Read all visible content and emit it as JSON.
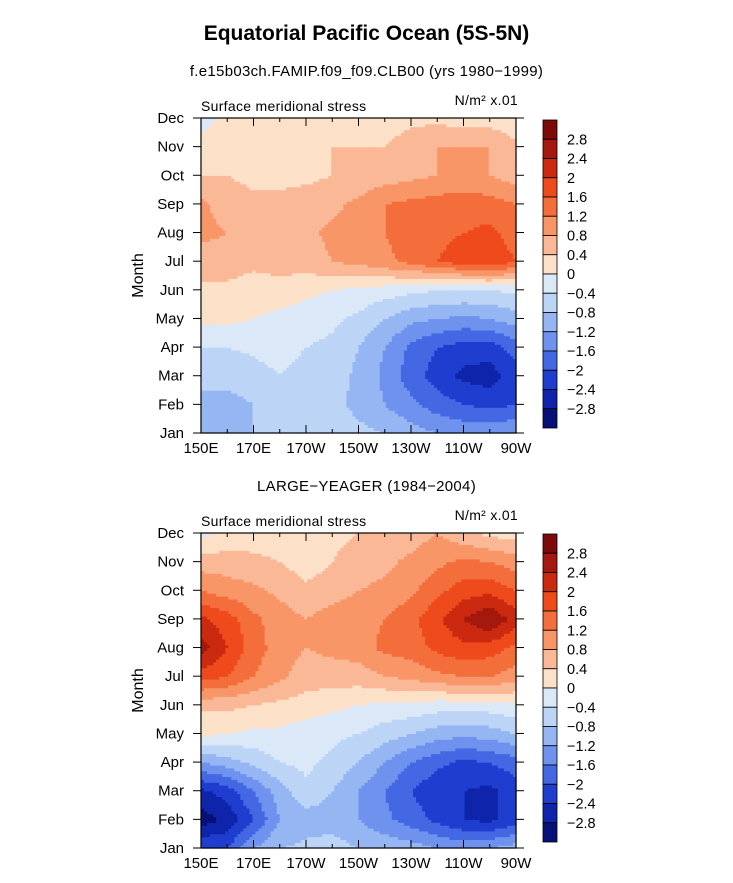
{
  "title": "Equatorial Pacific Ocean (5S-5N)",
  "subtitle": "f.e15b03ch.FAMIP.f09_f09.CLB00 (yrs 1980−1999)",
  "colorbar": {
    "labels": [
      "2.8",
      "2.4",
      "2",
      "1.6",
      "1.2",
      "0.8",
      "0.4",
      "0",
      "−0.4",
      "−0.8",
      "−1.2",
      "−1.6",
      "−2",
      "−2.4",
      "−2.8"
    ],
    "colors": [
      "#7d0a0a",
      "#a5180d",
      "#cc2a10",
      "#ee4a1c",
      "#f46e3c",
      "#f89668",
      "#fab896",
      "#fde0c8",
      "#dae8f8",
      "#bcd4f6",
      "#95b6f2",
      "#6e92ee",
      "#4468e4",
      "#1f3ed0",
      "#0e24aa",
      "#061078"
    ]
  },
  "chart_data": [
    {
      "type": "heatmap",
      "panel_title": "",
      "left_label": "Surface meridional stress",
      "units_label": "N/m² x.01",
      "ylabel": "Month",
      "xlabel": "",
      "x_ticks": [
        "150E",
        "170E",
        "170W",
        "150W",
        "130W",
        "110W",
        "90W"
      ],
      "y_ticks": [
        "Jan",
        "Feb",
        "Mar",
        "Apr",
        "May",
        "Jun",
        "Jul",
        "Aug",
        "Sep",
        "Oct",
        "Nov",
        "Dec"
      ],
      "x": [
        150,
        160,
        170,
        180,
        190,
        200,
        210,
        220,
        230,
        240,
        250,
        260,
        270
      ],
      "months": [
        "Jan",
        "Feb",
        "Mar",
        "Apr",
        "May",
        "Jun",
        "Jul",
        "Aug",
        "Sep",
        "Oct",
        "Nov",
        "Dec"
      ],
      "values": [
        [
          -0.8,
          -0.9,
          -0.8,
          -0.6,
          -0.6,
          -0.6,
          -0.7,
          -0.8,
          -1.0,
          -1.2,
          -1.3,
          -1.3,
          -1.2
        ],
        [
          -1.0,
          -1.0,
          -0.8,
          -0.6,
          -0.6,
          -0.7,
          -0.9,
          -1.2,
          -1.5,
          -1.8,
          -2.0,
          -2.1,
          -2.0
        ],
        [
          -0.6,
          -0.6,
          -0.5,
          -0.4,
          -0.5,
          -0.6,
          -0.9,
          -1.3,
          -1.8,
          -2.2,
          -2.5,
          -2.6,
          -2.2
        ],
        [
          -0.4,
          -0.4,
          -0.35,
          -0.3,
          -0.4,
          -0.5,
          -0.8,
          -1.2,
          -1.7,
          -2.0,
          -2.2,
          -2.2,
          -1.8
        ],
        [
          0.1,
          0.1,
          0.0,
          -0.1,
          -0.2,
          -0.3,
          -0.5,
          -0.8,
          -1.1,
          -1.2,
          -1.3,
          -1.2,
          -1.0
        ],
        [
          0.3,
          0.3,
          0.2,
          0.2,
          0.1,
          0.0,
          -0.1,
          -0.2,
          -0.3,
          -0.4,
          -0.4,
          -0.4,
          -0.3
        ],
        [
          0.6,
          0.6,
          0.5,
          0.6,
          0.6,
          0.8,
          0.9,
          1.1,
          1.3,
          1.6,
          1.8,
          1.9,
          1.6
        ],
        [
          0.9,
          0.8,
          0.7,
          0.7,
          0.7,
          0.9,
          1.0,
          1.2,
          1.4,
          1.5,
          1.6,
          1.7,
          1.4
        ],
        [
          0.9,
          0.6,
          0.5,
          0.5,
          0.6,
          0.7,
          0.9,
          1.2,
          1.3,
          1.4,
          1.4,
          1.4,
          1.2
        ],
        [
          0.4,
          0.4,
          0.3,
          0.3,
          0.3,
          0.4,
          0.5,
          0.6,
          0.7,
          0.8,
          0.9,
          0.8,
          0.6
        ],
        [
          0.2,
          0.3,
          0.3,
          0.4,
          0.4,
          0.4,
          0.4,
          0.4,
          0.6,
          0.8,
          0.8,
          0.8,
          0.5
        ],
        [
          -0.2,
          0.1,
          0.2,
          0.3,
          0.2,
          0.2,
          0.2,
          0.2,
          0.3,
          0.3,
          0.2,
          0.2,
          0.1
        ]
      ]
    },
    {
      "type": "heatmap",
      "panel_title": "LARGE−YEAGER (1984−2004)",
      "left_label": "Surface meridional stress",
      "units_label": "N/m² x.01",
      "ylabel": "Month",
      "xlabel": "",
      "x_ticks": [
        "150E",
        "170E",
        "170W",
        "150W",
        "130W",
        "110W",
        "90W"
      ],
      "y_ticks": [
        "Jan",
        "Feb",
        "Mar",
        "Apr",
        "May",
        "Jun",
        "Jul",
        "Aug",
        "Sep",
        "Oct",
        "Nov",
        "Dec"
      ],
      "x": [
        150,
        160,
        170,
        180,
        190,
        200,
        210,
        220,
        230,
        240,
        250,
        260,
        270
      ],
      "months": [
        "Jan",
        "Feb",
        "Mar",
        "Apr",
        "May",
        "Jun",
        "Jul",
        "Aug",
        "Sep",
        "Oct",
        "Nov",
        "Dec"
      ],
      "values": [
        [
          -2.0,
          -2.0,
          -1.2,
          -0.8,
          -0.7,
          -0.6,
          -0.8,
          -0.9,
          -1.0,
          -1.2,
          -1.3,
          -1.2,
          -1.0
        ],
        [
          -3.0,
          -2.7,
          -2.0,
          -1.2,
          -1.0,
          -1.0,
          -1.2,
          -1.5,
          -1.8,
          -2.1,
          -2.4,
          -2.5,
          -2.2
        ],
        [
          -2.5,
          -2.2,
          -1.6,
          -1.0,
          -0.5,
          -0.8,
          -1.2,
          -1.6,
          -2.0,
          -2.3,
          -2.4,
          -2.5,
          -2.2
        ],
        [
          -1.2,
          -1.0,
          -0.7,
          -0.4,
          -0.3,
          -0.5,
          -0.8,
          -1.2,
          -1.6,
          -1.9,
          -2.1,
          -2.0,
          -1.8
        ],
        [
          0.1,
          0.0,
          -0.1,
          -0.1,
          -0.2,
          -0.3,
          -0.4,
          -0.6,
          -0.8,
          -1.0,
          -1.1,
          -1.0,
          -0.8
        ],
        [
          0.5,
          0.5,
          0.4,
          0.3,
          0.2,
          0.1,
          0.0,
          -0.1,
          -0.1,
          -0.2,
          -0.2,
          -0.2,
          -0.1
        ],
        [
          1.8,
          1.6,
          1.2,
          0.9,
          0.6,
          0.6,
          0.6,
          0.8,
          0.9,
          1.1,
          1.2,
          1.2,
          1.0
        ],
        [
          2.6,
          2.0,
          1.4,
          1.0,
          0.8,
          0.9,
          1.0,
          1.3,
          1.4,
          1.7,
          1.9,
          1.8,
          1.5
        ],
        [
          2.1,
          1.8,
          1.3,
          1.0,
          0.8,
          1.0,
          1.1,
          1.2,
          1.5,
          1.9,
          2.4,
          2.8,
          2.2
        ],
        [
          1.2,
          1.0,
          0.9,
          0.7,
          0.5,
          0.6,
          0.8,
          0.9,
          1.1,
          1.5,
          1.8,
          1.9,
          1.6
        ],
        [
          0.6,
          0.6,
          0.5,
          0.4,
          0.2,
          0.4,
          0.6,
          0.7,
          0.9,
          1.1,
          1.3,
          1.2,
          1.0
        ],
        [
          -0.1,
          0.1,
          0.2,
          0.2,
          0.2,
          0.3,
          0.4,
          0.6,
          0.6,
          0.8,
          0.5,
          0.3,
          0.2
        ]
      ]
    }
  ]
}
